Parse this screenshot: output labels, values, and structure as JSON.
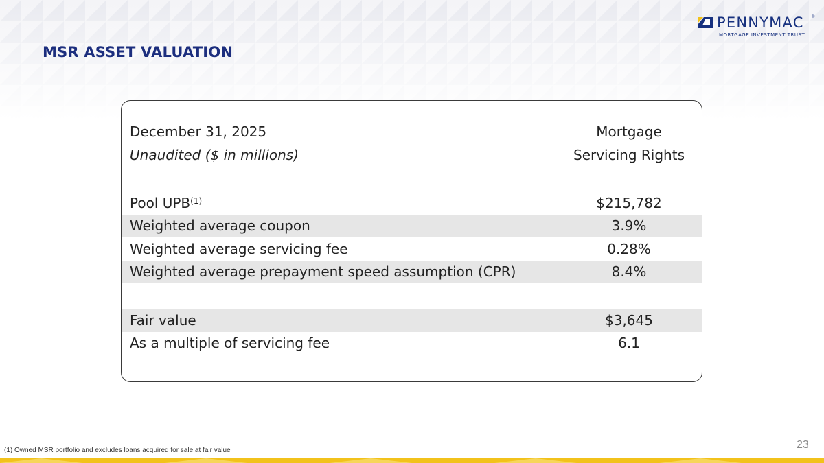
{
  "logo": {
    "name": "PENNYMAC",
    "reg": "®",
    "subtitle": "MORTGAGE INVESTMENT TRUST"
  },
  "title": "MSR ASSET VALUATION",
  "table": {
    "header": {
      "date": "December 31, 2025",
      "unit": "Unaudited ($ in millions)",
      "col_line1": "Mortgage",
      "col_line2": "Servicing Rights"
    },
    "rows": [
      {
        "label": "Pool UPB",
        "sup": "(1)",
        "value": "$215,782"
      },
      {
        "label": "Weighted average coupon",
        "value": "3.9%"
      },
      {
        "label": "Weighted average servicing fee",
        "value": "0.28%"
      },
      {
        "label": "Weighted average prepayment speed assumption (CPR)",
        "value": "8.4%"
      },
      {
        "label": "Fair value",
        "value": "$3,645"
      },
      {
        "label": "As a multiple of servicing fee",
        "value": "6.1"
      }
    ]
  },
  "footnote": "(1) Owned MSR portfolio and excludes loans acquired for sale at fair value",
  "page_number": "23",
  "colors": {
    "navy": "#1c2e7e",
    "gold": "#f2c21b",
    "row_shade": "#e6e6e6"
  }
}
